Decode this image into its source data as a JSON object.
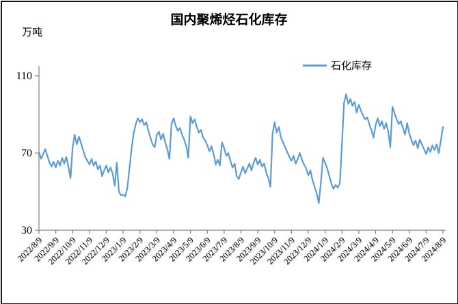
{
  "chart_data": {
    "type": "line",
    "title": "国内聚烯烃石化库存",
    "unit": "万吨",
    "legend": "石化库存",
    "line_color": "#5B9BD5",
    "ylim": [
      30,
      110
    ],
    "yticks": [
      110,
      70,
      30
    ],
    "grid": false,
    "legend_position": "top-right-inside",
    "x_tick_labels": [
      "2022/8/9",
      "2022/9/9",
      "2022/10/9",
      "2022/11/9",
      "2022/12/9",
      "2023/1/9",
      "2023/2/9",
      "2023/3/9",
      "2023/4/9",
      "2023/5/9",
      "2023/6/9",
      "2023/7/9",
      "2023/8/9",
      "2023/9/9",
      "2023/10/9",
      "2023/11/9",
      "2023/12/9",
      "2024/1/9",
      "2024/2/9",
      "2024/3/9",
      "2024/4/9",
      "2024/5/9",
      "2024/6/9",
      "2024/7/9",
      "2024/8/9"
    ],
    "x_start": "2022/8/9",
    "x_end": "2024/8/9",
    "series": [
      {
        "name": "石化库存",
        "values": [
          70.5,
          67,
          69.5,
          72,
          68.5,
          65,
          63,
          65.5,
          62.5,
          66,
          63.5,
          67.5,
          64.5,
          68,
          63,
          57,
          73,
          79.5,
          74.5,
          78.5,
          75,
          71.5,
          68,
          66,
          64,
          67,
          63.5,
          65.5,
          61.5,
          63.5,
          58,
          61,
          63.5,
          60,
          62.5,
          59.5,
          53,
          65,
          50,
          48,
          48.5,
          47.5,
          52,
          62,
          72,
          80,
          85,
          88,
          86,
          87.5,
          84.5,
          86,
          81.5,
          78,
          74.5,
          73,
          79.5,
          81,
          77,
          80,
          75.5,
          72,
          67,
          85,
          88,
          84,
          81.5,
          83,
          79.5,
          77,
          73.5,
          67.5,
          89,
          85.5,
          87.5,
          83.5,
          80.5,
          82,
          78,
          76.5,
          74,
          71,
          73.5,
          69.5,
          64,
          66.5,
          63.5,
          75.5,
          72.5,
          68.5,
          70,
          66,
          62.5,
          64.5,
          58,
          56.5,
          60,
          63,
          59.5,
          62,
          64.5,
          61,
          65,
          67.5,
          64,
          66.5,
          63,
          64.5,
          60,
          57,
          52.5,
          80,
          86,
          80.5,
          83.5,
          78,
          75.5,
          73,
          70.5,
          68,
          66,
          68.5,
          64.5,
          67,
          70,
          66.5,
          64,
          62,
          58.5,
          61,
          56,
          52.5,
          49,
          44,
          55,
          67.5,
          65,
          62,
          58,
          54,
          51.5,
          53.5,
          52,
          54.5,
          75,
          96,
          100.5,
          95.5,
          98,
          94.5,
          96.5,
          91,
          95,
          92,
          89.5,
          87.5,
          88.5,
          85,
          82,
          78,
          84.5,
          88,
          84,
          86.5,
          82.5,
          85.5,
          81,
          73,
          94,
          90.5,
          87.5,
          85,
          86.5,
          83,
          79.5,
          85.5,
          80,
          77,
          74,
          76.5,
          72.5,
          77,
          74.5,
          72,
          69.5,
          73,
          70.5,
          74,
          71.5,
          74.5,
          70,
          76.5,
          83.5
        ]
      }
    ]
  }
}
